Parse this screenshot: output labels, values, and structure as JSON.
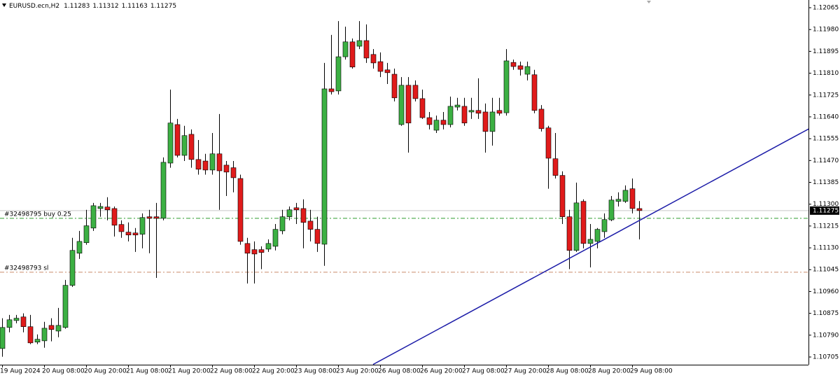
{
  "chart_data": {
    "type": "candlestick",
    "title": "EURUSD.ecn,H2",
    "categories": [
      "19 Aug 2024",
      null,
      null,
      null,
      null,
      null,
      "20 Aug 08:00",
      null,
      null,
      null,
      null,
      null,
      "20 Aug 20:00",
      null,
      null,
      null,
      null,
      null,
      "21 Aug 08:00",
      null,
      null,
      null,
      null,
      null,
      "21 Aug 20:00",
      null,
      null,
      null,
      null,
      null,
      "22 Aug 08:00",
      null,
      null,
      null,
      null,
      null,
      "22 Aug 20:00",
      null,
      null,
      null,
      null,
      null,
      "23 Aug 08:00",
      null,
      null,
      null,
      null,
      null,
      "23 Aug 20:00",
      null,
      null,
      null,
      null,
      null,
      "26 Aug 08:00",
      null,
      null,
      null,
      null,
      null,
      "26 Aug 20:00",
      null,
      null,
      null,
      null,
      null,
      "27 Aug 08:00",
      null,
      null,
      null,
      null,
      null,
      "27 Aug 20:00",
      null,
      null,
      null,
      null,
      null,
      "28 Aug 08:00",
      null,
      null,
      null,
      null,
      null,
      "28 Aug 20:00",
      null,
      null,
      null,
      null,
      null,
      "29 Aug 08:00",
      null
    ],
    "open": [
      1.10738,
      1.1082,
      1.10847,
      1.10861,
      1.10823,
      1.10763,
      1.10768,
      1.10828,
      1.10806,
      1.1082,
      1.10984,
      1.11109,
      1.1115,
      1.11207,
      1.11283,
      1.11289,
      1.11283,
      1.11221,
      1.11191,
      1.11188,
      1.11183,
      1.11251,
      1.11251,
      1.11245,
      1.1146,
      1.1161,
      1.1149,
      1.11572,
      1.11474,
      1.11468,
      1.11433,
      1.11496,
      1.11452,
      1.11442,
      1.114,
      1.11147,
      1.11123,
      1.11123,
      1.11125,
      1.11136,
      1.11196,
      1.11251,
      1.11286,
      1.11283,
      1.11234,
      1.11202,
      1.11144,
      1.11749,
      1.11741,
      1.11874,
      1.11932,
      1.11915,
      1.11937,
      1.11883,
      1.11855,
      1.11823,
      1.11806,
      1.1161,
      1.11763,
      1.11763,
      1.11711,
      1.11637,
      1.11588,
      1.11627,
      1.1161,
      1.11678,
      1.11681,
      1.11659,
      1.11665,
      1.11659,
      1.11583,
      1.11665,
      1.11656,
      1.11852,
      1.11839,
      1.11806,
      1.11804,
      1.1167,
      1.11597,
      1.11477,
      1.11412,
      1.11251,
      1.1112,
      1.11311,
      1.11147,
      1.11155,
      1.11193,
      1.11239,
      1.11311,
      1.11311,
      1.1136,
      1.11283
    ],
    "high": [
      1.10856,
      1.10869,
      1.10869,
      1.10875,
      1.10869,
      1.10793,
      1.10842,
      1.10856,
      1.10896,
      1.11005,
      1.11169,
      1.11196,
      1.11278,
      1.11305,
      1.11305,
      1.11327,
      1.11291,
      1.11237,
      1.11229,
      1.11207,
      1.11264,
      1.11278,
      1.11305,
      1.11482,
      1.11746,
      1.11632,
      1.11605,
      1.11591,
      1.1155,
      1.11496,
      1.11577,
      1.11651,
      1.11468,
      1.11468,
      1.11415,
      1.11169,
      1.11155,
      1.11136,
      1.11163,
      1.11223,
      1.11278,
      1.11291,
      1.11305,
      1.11319,
      1.11278,
      1.11251,
      1.1185,
      1.11959,
      1.12013,
      1.11991,
      1.11945,
      1.12013,
      1.12,
      1.11904,
      1.11891,
      1.1185,
      1.11828,
      1.11795,
      1.11795,
      1.11782,
      1.11746,
      1.11659,
      1.11645,
      1.11659,
      1.11719,
      1.11714,
      1.11714,
      1.11714,
      1.1179,
      1.11692,
      1.11714,
      1.11714,
      1.11904,
      1.11863,
      1.11855,
      1.11855,
      1.11823,
      1.11686,
      1.11605,
      1.11577,
      1.11428,
      1.11278,
      1.11384,
      1.11319,
      1.11223,
      1.11207,
      1.11264,
      1.11332,
      1.11346,
      1.11373,
      1.114,
      1.11312
    ],
    "low": [
      1.10706,
      1.10801,
      1.10836,
      1.10801,
      1.10755,
      1.10755,
      1.10741,
      1.10766,
      1.10782,
      1.10815,
      1.10978,
      1.11087,
      1.11142,
      1.11196,
      1.11251,
      1.11237,
      1.11174,
      1.11169,
      1.11155,
      1.11114,
      1.11128,
      1.11109,
      1.11013,
      1.11237,
      1.11442,
      1.11482,
      1.11468,
      1.11442,
      1.11415,
      1.11415,
      1.11415,
      1.11278,
      1.11332,
      1.11346,
      1.11142,
      1.10991,
      1.10991,
      1.11047,
      1.11114,
      1.1112,
      1.11183,
      1.11237,
      1.11223,
      1.11128,
      1.11155,
      1.11114,
      1.1106,
      1.11727,
      1.11727,
      1.11863,
      1.11828,
      1.11904,
      1.1185,
      1.11828,
      1.11795,
      1.11768,
      1.117,
      1.11605,
      1.11501,
      1.117,
      1.11632,
      1.11591,
      1.11577,
      1.11591,
      1.11599,
      1.11665,
      1.11605,
      1.11632,
      1.11632,
      1.11501,
      1.11528,
      1.11645,
      1.11645,
      1.11823,
      1.11801,
      1.11782,
      1.11654,
      1.11583,
      1.1136,
      1.114,
      1.11223,
      1.11047,
      1.11114,
      1.11128,
      1.11054,
      1.11128,
      1.11169,
      1.11234,
      1.11291,
      1.11305,
      1.11264,
      1.11163
    ],
    "close": [
      1.1082,
      1.1085,
      1.10856,
      1.10823,
      1.1076,
      1.10774,
      1.10817,
      1.10812,
      1.10828,
      1.10984,
      1.1112,
      1.11155,
      1.11216,
      1.11294,
      1.11291,
      1.11278,
      1.11218,
      1.11193,
      1.1118,
      1.1118,
      1.11248,
      1.11245,
      1.11245,
      1.11463,
      1.11616,
      1.1149,
      1.11567,
      1.11474,
      1.11436,
      1.11433,
      1.11496,
      1.1143,
      1.11425,
      1.11403,
      1.11155,
      1.11109,
      1.11106,
      1.11112,
      1.11147,
      1.11202,
      1.11251,
      1.11278,
      1.11278,
      1.11229,
      1.11202,
      1.11147,
      1.11749,
      1.11738,
      1.11874,
      1.11932,
      1.11834,
      1.11937,
      1.11869,
      1.1185,
      1.11817,
      1.11812,
      1.11714,
      1.11763,
      1.11616,
      1.11711,
      1.11637,
      1.1161,
      1.11627,
      1.1161,
      1.11681,
      1.11686,
      1.11616,
      1.11665,
      1.11654,
      1.11583,
      1.11659,
      1.11654,
      1.11858,
      1.11836,
      1.11825,
      1.11836,
      1.11665,
      1.11594,
      1.11479,
      1.11412,
      1.11251,
      1.1112,
      1.11305,
      1.11147,
      1.11163,
      1.11202,
      1.1124,
      1.11316,
      1.11319,
      1.11354,
      1.11283,
      1.11275
    ],
    "up_color": "#3cb043",
    "down_color": "#e01b1b",
    "ylim": [
      1.10675,
      1.12095
    ],
    "yticks": [
      1.12065,
      {
        "value": 1.1198,
        "label": "1.11980"
      },
      1.11895,
      {
        "value": 1.1181,
        "label": "1.11810"
      },
      1.11725,
      {
        "value": 1.1164,
        "label": "1.11640"
      },
      1.11555,
      {
        "value": 1.1147,
        "label": "1.11470"
      },
      1.11385,
      {
        "value": 1.113,
        "label": "1.11300"
      },
      1.11215,
      {
        "value": 1.1113,
        "label": "1.11130"
      },
      1.11045,
      {
        "value": 1.1096,
        "label": "1.10960"
      },
      1.10875,
      {
        "value": 1.1079,
        "label": "1.10790"
      },
      1.10705
    ],
    "grid": false,
    "levels": [
      {
        "label": "#32498795 buy 0.25",
        "value": 1.11245,
        "color": "#2e9e2e"
      },
      {
        "label": "#32498793 sl",
        "value": 1.11035,
        "color": "#c98a6a"
      }
    ],
    "trendline": {
      "x": [
        53,
        115.5
      ],
      "y": [
        1.10676,
        1.11597
      ],
      "color": "#1c1ca8"
    }
  }
}
